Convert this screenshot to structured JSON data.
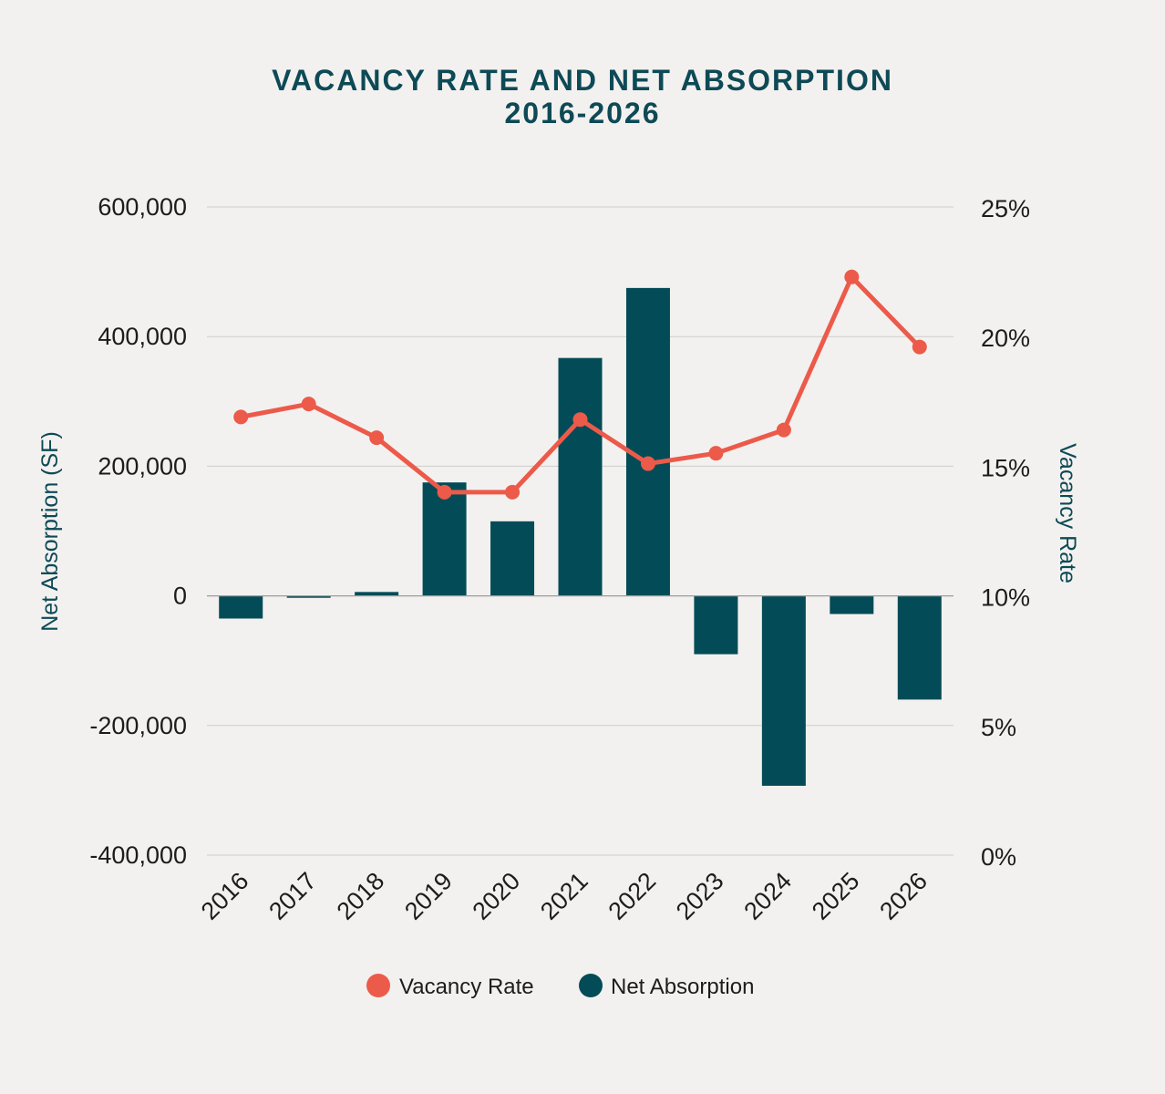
{
  "chart_data": {
    "type": "bar",
    "title": "VACANCY RATE AND NET ABSORPTION",
    "subtitle": "2016-2026",
    "categories": [
      "2016",
      "2017",
      "2018",
      "2019",
      "2020",
      "2021",
      "2022",
      "2023",
      "2024",
      "2025",
      "2026"
    ],
    "series": [
      {
        "name": "Net Absorption",
        "type": "bar",
        "axis": "left",
        "color": "#034c57",
        "values": [
          -35000,
          -3000,
          6000,
          175000,
          115000,
          367000,
          475000,
          -90000,
          -293000,
          -28000,
          -160000
        ]
      },
      {
        "name": "Vacancy Rate",
        "type": "line",
        "axis": "right",
        "color": "#ec5a4a",
        "values": [
          16.9,
          17.4,
          16.1,
          14.0,
          14.0,
          16.8,
          15.1,
          15.5,
          16.4,
          22.3,
          19.6
        ]
      }
    ],
    "y_left": {
      "label": "Net Absorption (SF)",
      "range": [
        -400000,
        600000
      ],
      "ticks": [
        -400000,
        -200000,
        0,
        200000,
        400000,
        600000
      ],
      "tick_labels": [
        "-400,000",
        "-200,000",
        "0",
        "200,000",
        "400,000",
        "600,000"
      ]
    },
    "y_right": {
      "label": "Vacancy Rate",
      "range": [
        0,
        25
      ],
      "ticks": [
        0,
        5,
        10,
        15,
        20,
        25
      ],
      "tick_labels": [
        "0%",
        "5%",
        "10%",
        "15%",
        "20%",
        "25%"
      ]
    },
    "grid": true,
    "legend": {
      "position": "bottom",
      "items": [
        "Vacancy Rate",
        "Net Absorption"
      ]
    }
  }
}
